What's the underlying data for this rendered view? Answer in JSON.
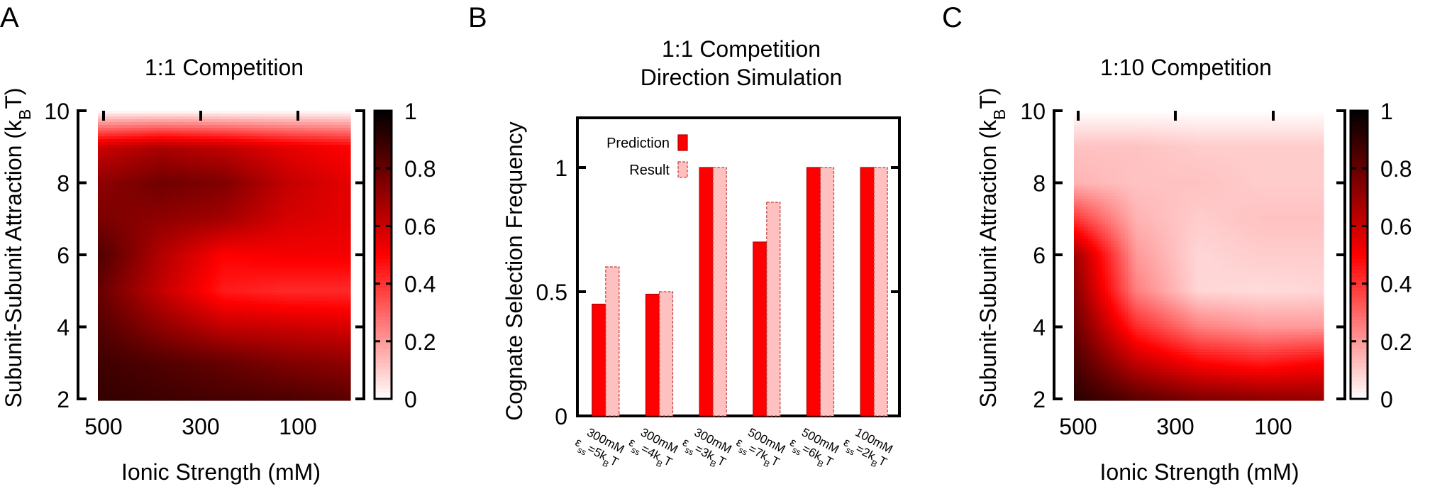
{
  "panels": {
    "a": {
      "letter": "A",
      "title": "1:1 Competition"
    },
    "b": {
      "letter": "B",
      "title_lines": [
        "1:1 Competition",
        "Direction Simulation"
      ]
    },
    "c": {
      "letter": "C",
      "title": "1:10 Competition"
    }
  },
  "colors": {
    "red": "#ff0000",
    "light_red": "#ffc0c0",
    "frame": "#000000"
  },
  "chart_data": [
    {
      "id": "A",
      "type": "heatmap",
      "title": "1:1 Competition",
      "xlabel": "Ionic Strength (mM)",
      "ylabel": "Subunit-Subunit Attraction (kBT)",
      "x_ticks": [
        "500",
        "300",
        "100"
      ],
      "y_ticks": [
        "2",
        "4",
        "6",
        "8",
        "10"
      ],
      "x_dir": "decreasing",
      "ylim": [
        2,
        10
      ],
      "colorbar": {
        "min": 0,
        "max": 1,
        "ticks": [
          "0",
          "0.2",
          "0.4",
          "0.6",
          "0.8",
          "1"
        ],
        "colormap": "white-red-black"
      },
      "grid_x": [
        500,
        400,
        300,
        200,
        100
      ],
      "grid_y": [
        2,
        3,
        4,
        5,
        6,
        7,
        8,
        9,
        10
      ],
      "values": [
        [
          0.9,
          0.88,
          0.86,
          0.85,
          0.82
        ],
        [
          0.88,
          0.84,
          0.8,
          0.75,
          0.72
        ],
        [
          0.84,
          0.72,
          0.62,
          0.6,
          0.58
        ],
        [
          0.8,
          0.62,
          0.45,
          0.42,
          0.42
        ],
        [
          0.85,
          0.65,
          0.5,
          0.52,
          0.52
        ],
        [
          0.76,
          0.72,
          0.68,
          0.58,
          0.55
        ],
        [
          0.72,
          0.78,
          0.75,
          0.62,
          0.55
        ],
        [
          0.6,
          0.66,
          0.62,
          0.55,
          0.5
        ],
        [
          0.0,
          0.0,
          0.0,
          0.0,
          0.0
        ]
      ]
    },
    {
      "id": "B",
      "type": "bar",
      "title": "1:1 Competition Direction Simulation",
      "ylabel": "Cognate Selection Frequency",
      "ylim": [
        0,
        1.2
      ],
      "y_ticks": [
        "0",
        "0.5",
        "1"
      ],
      "categories": [
        {
          "line1": "300mM",
          "line2": "εss=5kBT"
        },
        {
          "line1": "300mM",
          "line2": "εss=4kBT"
        },
        {
          "line1": "300mM",
          "line2": "εss=3kBT"
        },
        {
          "line1": "500mM",
          "line2": "εss=7kBT"
        },
        {
          "line1": "500mM",
          "line2": "εss=6kBT"
        },
        {
          "line1": "100mM",
          "line2": "εss=2kBT"
        }
      ],
      "series": [
        {
          "name": "Prediction",
          "values": [
            0.45,
            0.49,
            1.0,
            0.7,
            1.0,
            1.0
          ]
        },
        {
          "name": "Result",
          "values": [
            0.6,
            0.5,
            1.0,
            0.86,
            1.0,
            1.0
          ]
        }
      ],
      "legend": "top-left"
    },
    {
      "id": "C",
      "type": "heatmap",
      "title": "1:10 Competition",
      "xlabel": "Ionic Strength (mM)",
      "ylabel": "Subunit-Subunit Attraction (kBT)",
      "x_ticks": [
        "500",
        "300",
        "100"
      ],
      "y_ticks": [
        "2",
        "4",
        "6",
        "8",
        "10"
      ],
      "x_dir": "decreasing",
      "ylim": [
        2,
        10
      ],
      "colorbar": {
        "min": 0,
        "max": 1,
        "ticks": [
          "0",
          "0.2",
          "0.4",
          "0.6",
          "0.8",
          "1"
        ],
        "colormap": "white-red-black"
      },
      "grid_x": [
        500,
        400,
        300,
        200,
        100
      ],
      "grid_y": [
        2,
        3,
        4,
        5,
        6,
        7,
        8,
        9,
        10
      ],
      "values": [
        [
          0.92,
          0.82,
          0.75,
          0.72,
          0.7
        ],
        [
          0.86,
          0.62,
          0.5,
          0.45,
          0.5
        ],
        [
          0.8,
          0.42,
          0.25,
          0.2,
          0.2
        ],
        [
          0.75,
          0.25,
          0.08,
          0.07,
          0.08
        ],
        [
          0.7,
          0.2,
          0.08,
          0.1,
          0.1
        ],
        [
          0.4,
          0.15,
          0.1,
          0.12,
          0.12
        ],
        [
          0.15,
          0.12,
          0.12,
          0.1,
          0.1
        ],
        [
          0.12,
          0.12,
          0.1,
          0.1,
          0.1
        ],
        [
          0.0,
          0.0,
          0.0,
          0.0,
          0.0
        ]
      ]
    }
  ]
}
